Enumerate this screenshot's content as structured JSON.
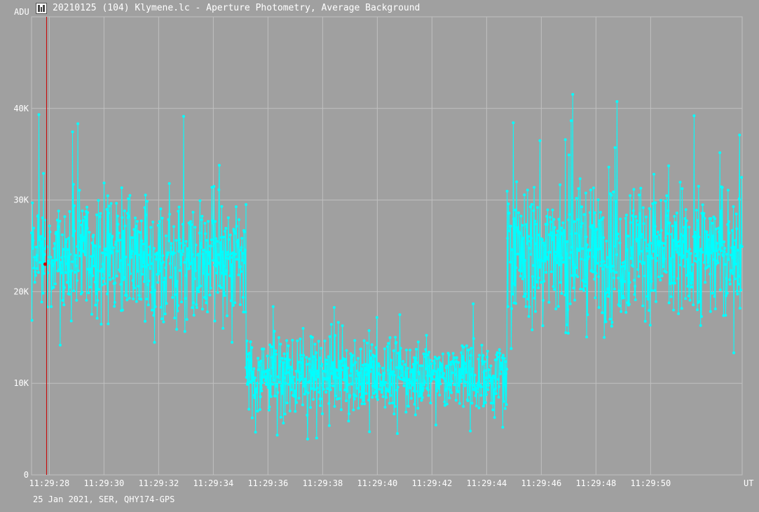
{
  "window": {
    "title": "20210125 (104) Klymene.lc - Aperture Photometry, Average Background",
    "icon": "app-logo-icon"
  },
  "footer": {
    "info": "25 Jan 2021, SER, QHY174-GPS"
  },
  "chart_data": {
    "type": "line",
    "ylabel": "ADU",
    "xlabel": "UT",
    "ylim": [
      0,
      50000
    ],
    "xlim": [
      "11:29:27.35",
      "11:29:53.35"
    ],
    "yticks": [
      {
        "value": 0,
        "label": "0"
      },
      {
        "value": 10000,
        "label": "10K"
      },
      {
        "value": 20000,
        "label": "20K"
      },
      {
        "value": 30000,
        "label": "30K"
      },
      {
        "value": 40000,
        "label": "40K"
      }
    ],
    "xticks": [
      {
        "value": "11:29:28",
        "label": "11:29:28"
      },
      {
        "value": "11:29:30",
        "label": "11:29:30"
      },
      {
        "value": "11:29:32",
        "label": "11:29:32"
      },
      {
        "value": "11:29:34",
        "label": "11:29:34"
      },
      {
        "value": "11:29:36",
        "label": "11:29:36"
      },
      {
        "value": "11:29:38",
        "label": "11:29:38"
      },
      {
        "value": "11:29:40",
        "label": "11:29:40"
      },
      {
        "value": "11:29:42",
        "label": "11:29:42"
      },
      {
        "value": "11:29:44",
        "label": "11:29:44"
      },
      {
        "value": "11:29:46",
        "label": "11:29:46"
      },
      {
        "value": "11:29:48",
        "label": "11:29:48"
      },
      {
        "value": "11:29:50",
        "label": "11:29:50"
      }
    ],
    "grid": true,
    "cursor": {
      "x": "11:29:27.90",
      "y": 23000
    },
    "colors": {
      "series": "#00ffff",
      "cursor": "#cc0000",
      "grid": "#c0c0c0",
      "background": "#a0a0a0"
    },
    "series": [
      {
        "segments": [
          {
            "start": "11:29:27.35",
            "end": "11:29:35.20",
            "mean": 24000,
            "spread": 4500,
            "outlier_max": 39500,
            "outlier_min": 13200
          },
          {
            "start": "11:29:35.20",
            "end": "11:29:44.75",
            "mean": 10800,
            "spread": 2600,
            "outlier_max": 19800,
            "outlier_min": 3600
          },
          {
            "start": "11:29:44.75",
            "end": "11:29:53.35",
            "mean": 24500,
            "spread": 5000,
            "outlier_max": 42000,
            "outlier_min": 13200
          }
        ],
        "sample_step_s": 0.015
      }
    ]
  }
}
